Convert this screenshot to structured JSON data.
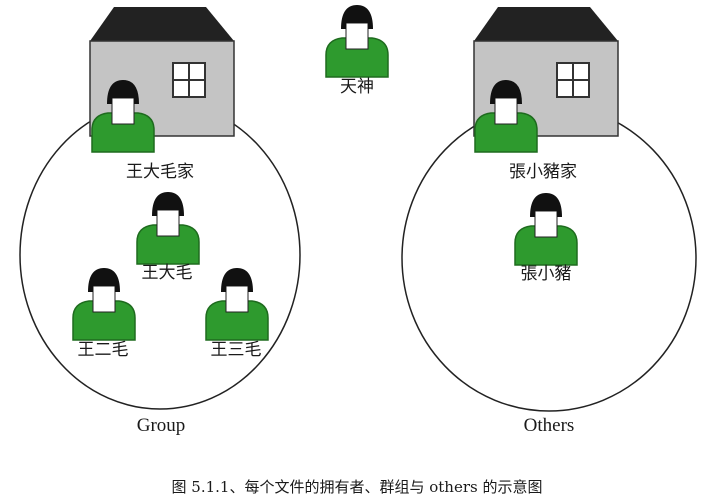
{
  "god": {
    "label": "天神"
  },
  "left_group": {
    "house_label": "王大毛家",
    "members": [
      "王大毛",
      "王二毛",
      "王三毛"
    ],
    "group_label": "Group"
  },
  "right_group": {
    "house_label": "張小豬家",
    "members": [
      "張小豬"
    ],
    "group_label": "Others"
  },
  "caption": "图 5.1.1、每个文件的拥有者、群组与  others  的示意图",
  "colors": {
    "body_green": "#2e9a2e",
    "face_white": "#ffffff",
    "hair_black": "#111111",
    "house_wall": "#c4c4c4",
    "roof": "#222222"
  }
}
